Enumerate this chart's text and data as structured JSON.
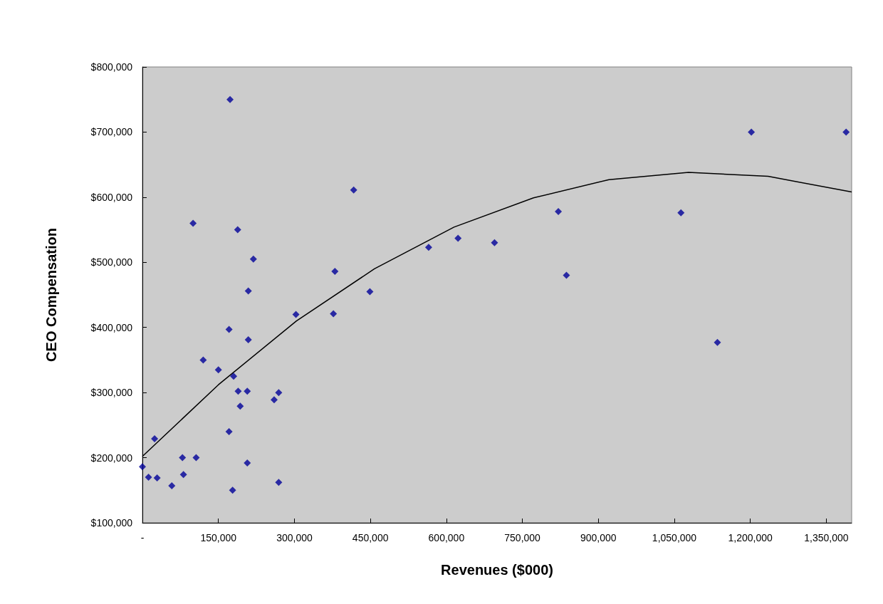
{
  "chart_data": {
    "type": "scatter",
    "xlabel": "Revenues ($000)",
    "ylabel": "CEO Compensation",
    "xlim": [
      0,
      1400000
    ],
    "ylim": [
      100000,
      800000
    ],
    "xticks": [
      {
        "value": 0,
        "label": "-"
      },
      {
        "value": 150000,
        "label": "150,000"
      },
      {
        "value": 300000,
        "label": "300,000"
      },
      {
        "value": 450000,
        "label": "450,000"
      },
      {
        "value": 600000,
        "label": "600,000"
      },
      {
        "value": 750000,
        "label": "750,000"
      },
      {
        "value": 900000,
        "label": "900,000"
      },
      {
        "value": 1050000,
        "label": "1,050,000"
      },
      {
        "value": 1200000,
        "label": "1,200,000"
      },
      {
        "value": 1350000,
        "label": "1,350,000"
      }
    ],
    "yticks": [
      {
        "value": 100000,
        "label": "$100,000"
      },
      {
        "value": 200000,
        "label": "$200,000"
      },
      {
        "value": 300000,
        "label": "$300,000"
      },
      {
        "value": 400000,
        "label": "$400,000"
      },
      {
        "value": 500000,
        "label": "$500,000"
      },
      {
        "value": 600000,
        "label": "$600,000"
      },
      {
        "value": 700000,
        "label": "$700,000"
      },
      {
        "value": 800000,
        "label": "$800,000"
      }
    ],
    "grid": false,
    "series": [
      {
        "color": "#000099",
        "marker": "diamond",
        "x": [
          0,
          12000,
          29000,
          24000,
          58000,
          79000,
          81000,
          106000,
          100000,
          120000,
          150000,
          173000,
          188000,
          219000,
          209000,
          171000,
          209000,
          180000,
          189000,
          207000,
          269000,
          260000,
          193000,
          171000,
          207000,
          178000,
          269000,
          303000,
          380000,
          377000,
          417000,
          449000,
          565000,
          623000,
          695000,
          821000,
          837000,
          1063000,
          1135000,
          1202000,
          1389000
        ],
        "values": [
          186000,
          170000,
          169000,
          229000,
          157000,
          200000,
          174000,
          200000,
          560000,
          350000,
          335000,
          750000,
          550000,
          505000,
          456000,
          397000,
          381000,
          325000,
          302000,
          302000,
          300000,
          289000,
          279000,
          240000,
          192000,
          150000,
          162000,
          420000,
          486000,
          421000,
          611000,
          455000,
          523000,
          537000,
          530000,
          578000,
          480000,
          576000,
          377000,
          700000,
          700000
        ]
      },
      {
        "type": "line",
        "color": "#000000",
        "marker": "none",
        "line_style": "solid",
        "x": [
          0,
          150000,
          304000,
          458000,
          615000,
          772000,
          921000,
          1078000,
          1235000,
          1400000
        ],
        "values": [
          202000,
          312000,
          410000,
          490000,
          554000,
          599000,
          627000,
          638000,
          632000,
          608000
        ]
      }
    ]
  }
}
